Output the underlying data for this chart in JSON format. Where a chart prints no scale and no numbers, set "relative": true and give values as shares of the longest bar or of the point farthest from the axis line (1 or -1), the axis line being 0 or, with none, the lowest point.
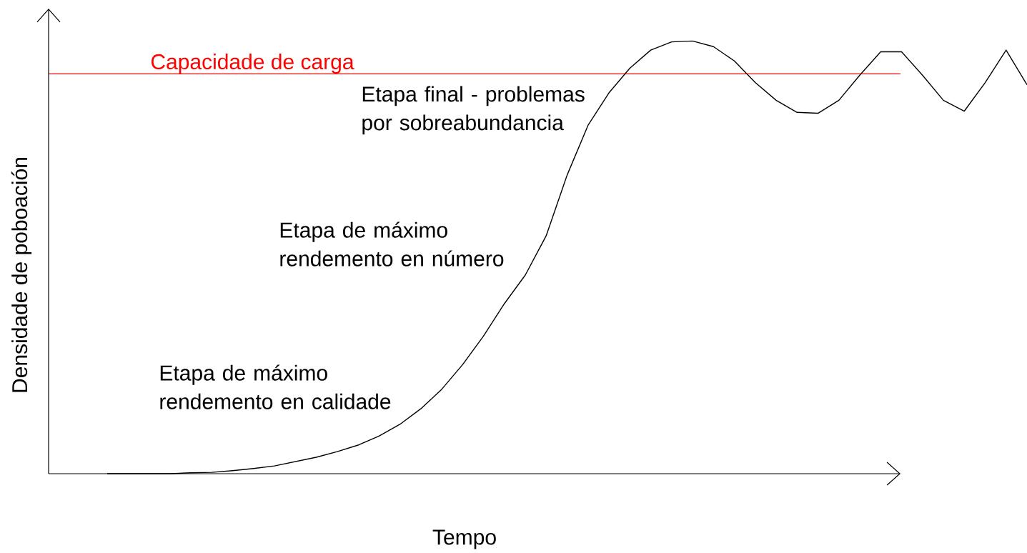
{
  "chart_data": {
    "type": "line",
    "relative": true,
    "xlabel": "Tempo",
    "ylabel": "Densidade de poboación",
    "categories": [
      null,
      null,
      null,
      null,
      null,
      null,
      null,
      null,
      null,
      null,
      null,
      null,
      null,
      null,
      null,
      null,
      null,
      null,
      null,
      null,
      null,
      null,
      null,
      null,
      null,
      null,
      null,
      null,
      null,
      null,
      null,
      null,
      null,
      null,
      null,
      null,
      null,
      null,
      null,
      null,
      null,
      null,
      null,
      null,
      null
    ],
    "series": [
      {
        "color": "#000000",
        "values": [
          0,
          0,
          0,
          0,
          0.002,
          0.003,
          0.007,
          0.012,
          0.018,
          0.028,
          0.038,
          0.051,
          0.066,
          0.087,
          0.114,
          0.15,
          0.195,
          0.252,
          0.318,
          0.393,
          0.459,
          0.55,
          0.69,
          0.805,
          0.88,
          0.937,
          0.979,
          0.998,
          1,
          0.987,
          0.954,
          0.904,
          0.863,
          0.835,
          0.833,
          0.863,
          0.921,
          0.975,
          0.975,
          0.921,
          0.863,
          0.838,
          0.904,
          0.979,
          0.899
        ]
      }
    ],
    "ref_lines": [
      {
        "axis": "y",
        "value": 0.924,
        "label": "Capacidade de carga",
        "color": "#ff0000"
      }
    ],
    "annotations": [
      "Etapa final - problemas por sobreabundancia",
      "Etapa de máximo rendemento en número",
      "Etapa de máximo rendemento en calidade"
    ]
  }
}
